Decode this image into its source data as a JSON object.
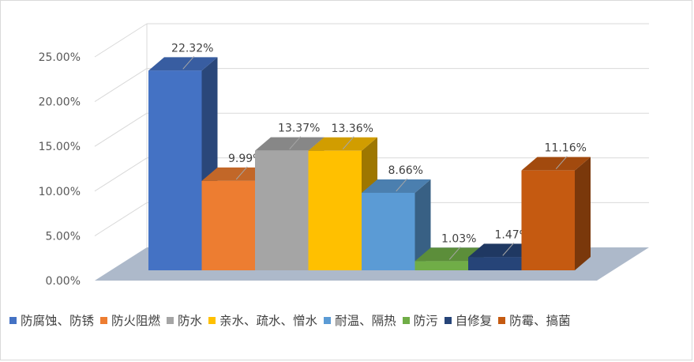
{
  "chart_data": {
    "type": "bar",
    "subtype": "3d-clustered-column",
    "series": [
      {
        "name": "防腐蚀、防锈",
        "value": 22.32,
        "label": "22.32%",
        "color": "#4472C4"
      },
      {
        "name": "防火阻燃",
        "value": 9.99,
        "label": "9.99%",
        "color": "#ED7D31"
      },
      {
        "name": "防水",
        "value": 13.37,
        "label": "13.37%",
        "color": "#A5A5A5"
      },
      {
        "name": "亲水、疏水、憎水",
        "value": 13.36,
        "label": "13.36%",
        "color": "#FFC000"
      },
      {
        "name": "耐温、隔热",
        "value": 8.66,
        "label": "8.66%",
        "color": "#5B9BD5"
      },
      {
        "name": "防污",
        "value": 1.03,
        "label": "1.03%",
        "color": "#70AD47"
      },
      {
        "name": "自修复",
        "value": 1.47,
        "label": "1.47%",
        "color": "#264478"
      },
      {
        "name": "防霉、搞菌",
        "value": 11.16,
        "label": "11.16%",
        "color": "#C55A11"
      }
    ],
    "yticks": [
      "0.00%",
      "5.00%",
      "10.00%",
      "15.00%",
      "20.00%",
      "25.00%"
    ],
    "ylim": [
      0,
      25
    ],
    "grid": true,
    "legend_position": "bottom",
    "floor_color": "#ADB9CA"
  }
}
